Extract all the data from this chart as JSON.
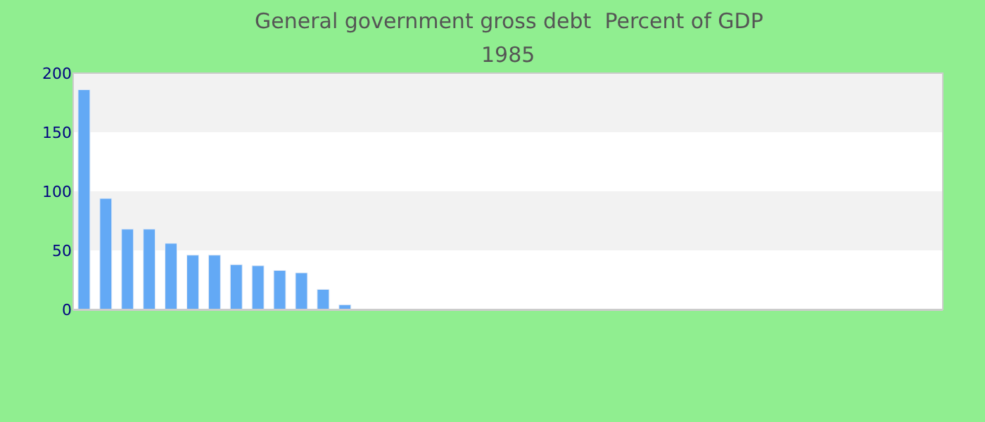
{
  "chart_data": {
    "type": "bar",
    "title": "General government gross debt  Percent of GDP",
    "subtitle": "1985",
    "categories": [
      null,
      null,
      null,
      null,
      null,
      null,
      null,
      null,
      null,
      null,
      null,
      null,
      null,
      null,
      null,
      null,
      null,
      null,
      null,
      null,
      null,
      null,
      null,
      null,
      null,
      null,
      null,
      null,
      null,
      null,
      null,
      null,
      null,
      null,
      null,
      null,
      null,
      null,
      null,
      null
    ],
    "values": [
      186,
      94,
      68,
      68,
      56,
      46,
      46,
      38,
      37,
      33,
      31,
      17,
      4,
      null,
      null,
      null,
      null,
      null,
      null,
      null,
      null,
      null,
      null,
      null,
      null,
      null,
      null,
      null,
      null,
      null,
      null,
      null,
      null,
      null,
      null,
      null,
      null,
      null,
      null,
      null
    ],
    "color": "#63a9f5",
    "ylim": [
      0,
      200
    ],
    "yticks": [
      0,
      50,
      100,
      150,
      200
    ],
    "bands": [
      {
        "axis": "y",
        "from": 50,
        "to": 100,
        "color": "#f2f2f2"
      },
      {
        "axis": "y",
        "from": 150,
        "to": 200,
        "color": "#f2f2f2"
      }
    ],
    "grid": false
  }
}
